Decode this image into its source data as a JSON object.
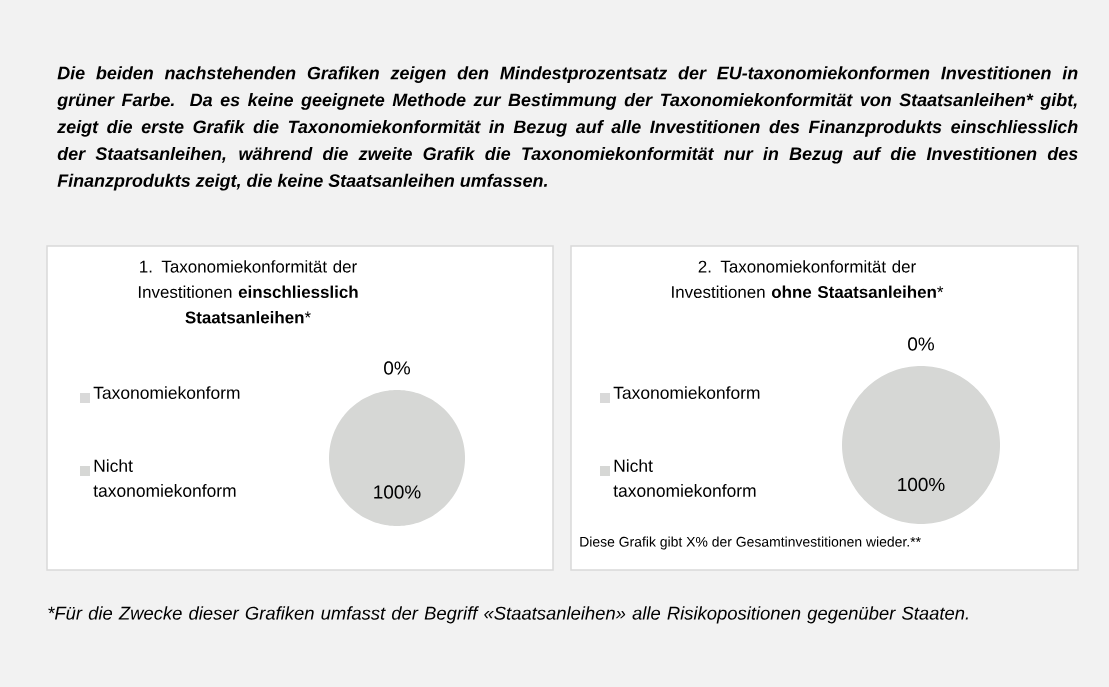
{
  "chart_data": [
    {
      "type": "pie",
      "title": "1. Taxonomiekonformität der Investitionen **einschliesslich Staatsanleihen***",
      "categories": [
        "Taxonomiekonform",
        "Nicht taxonomiekonform"
      ],
      "values": [
        0,
        100
      ],
      "value_labels": [
        "0%",
        "100%"
      ],
      "colors": [
        "#d9d9d9",
        "#d6d7d5"
      ],
      "legend": "left",
      "annotations": [
        "Die beiden nachstehenden Grafiken zeigen den Mindestprozentsatz der EU-taxonomiekonformen Investitionen in grüner Farbe. Da es keine geeignete Methode zur Bestimmung der Taxonomiekonformität von Staatsanleihen* gibt, zeigt die erste Grafik die Taxonomiekonformität in Bezug auf alle Investitionen des Finanzprodukts einschliesslich der Staatsanleihen, während die zweite Grafik die Taxonomiekonformität nur in Bezug auf die Investitionen des Finanzprodukts zeigt, die keine Staatsanleihen umfassen.",
        "*Für die Zwecke dieser Grafiken umfasst der Begriff «Staatsanleihen» alle Risikopositionen gegenüber Staaten."
      ]
    },
    {
      "type": "pie",
      "title": "2. Taxonomiekonformität der Investitionen **ohne Staatsanleihen***",
      "categories": [
        "Taxonomiekonform",
        "Nicht taxonomiekonform"
      ],
      "values": [
        0,
        100
      ],
      "value_labels": [
        "0%",
        "100%"
      ],
      "colors": [
        "#d9d9d9",
        "#d6d7d5"
      ],
      "legend": "left",
      "annotations": [
        "Diese Grafik gibt X% der Gesamtinvestitionen wieder.**"
      ]
    }
  ]
}
